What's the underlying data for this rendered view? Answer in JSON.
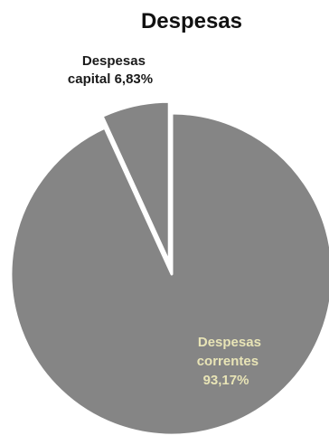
{
  "chart_data": {
    "type": "pie",
    "title": "Despesas",
    "slices": [
      {
        "label_lines": [
          "Despesas",
          "correntes",
          "93,17%"
        ],
        "value": 93.17,
        "color": "#858585",
        "label_placement": "inside-bottom-right"
      },
      {
        "label_lines": [
          "Despesas",
          "capital 6,83%"
        ],
        "value": 6.83,
        "color": "#858585",
        "exploded": true,
        "label_placement": "outside-top-left"
      }
    ],
    "legend": "none",
    "start_angle": "12 o'clock"
  }
}
